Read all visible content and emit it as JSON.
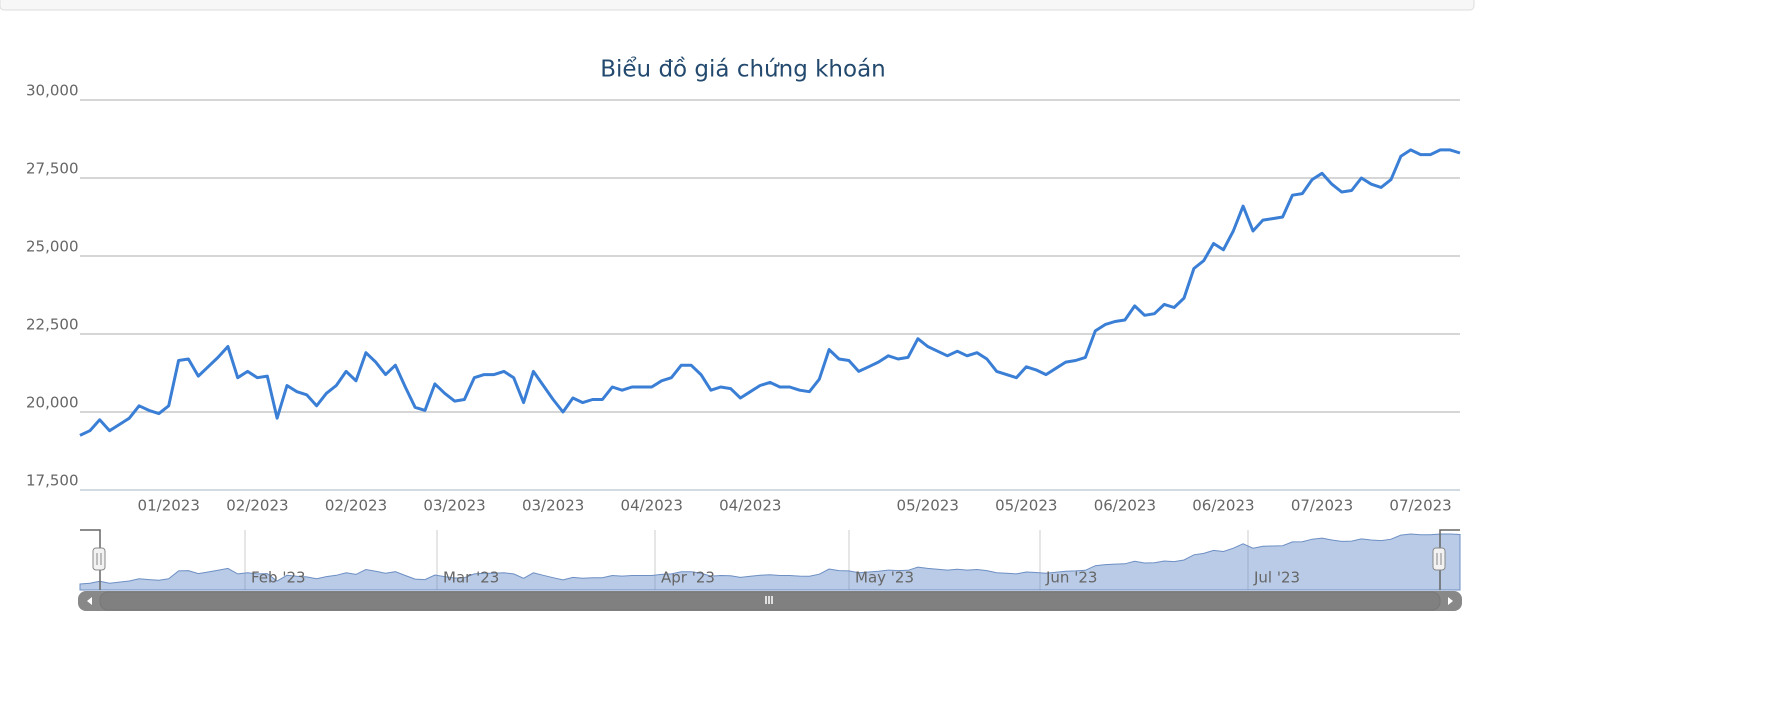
{
  "chart_data": {
    "type": "line",
    "title": "Biểu đồ giá chứng khoán",
    "color": "#3a7fd5",
    "grid": true,
    "ylim": [
      17500,
      30000
    ],
    "yticks": [
      {
        "value": 17500,
        "label": "17,500"
      },
      {
        "value": 20000,
        "label": "20,000"
      },
      {
        "value": 22500,
        "label": "22,500"
      },
      {
        "value": 25000,
        "label": "25,000"
      },
      {
        "value": 27500,
        "label": "27,500"
      },
      {
        "value": 30000,
        "label": "30,000"
      }
    ],
    "categories": [
      null,
      null,
      null,
      null,
      null,
      null,
      null,
      null,
      null,
      "01/2023",
      null,
      null,
      null,
      null,
      null,
      null,
      null,
      null,
      "02/2023",
      null,
      null,
      null,
      null,
      null,
      null,
      null,
      null,
      null,
      "02/2023",
      null,
      null,
      null,
      null,
      null,
      null,
      null,
      null,
      null,
      "03/2023",
      null,
      null,
      null,
      null,
      null,
      null,
      null,
      null,
      null,
      "03/2023",
      null,
      null,
      null,
      null,
      null,
      null,
      null,
      null,
      null,
      "04/2023",
      null,
      null,
      null,
      null,
      null,
      null,
      null,
      null,
      null,
      "04/2023",
      null,
      null,
      null,
      null,
      null,
      null,
      null,
      null,
      null,
      null,
      null,
      null,
      null,
      null,
      null,
      null,
      null,
      "05/2023",
      null,
      null,
      null,
      null,
      null,
      null,
      null,
      null,
      null,
      "05/2023",
      null,
      null,
      null,
      null,
      null,
      null,
      null,
      null,
      null,
      "06/2023",
      null,
      null,
      null,
      null,
      null,
      null,
      null,
      null,
      null,
      "06/2023",
      null,
      null,
      null,
      null,
      null,
      null,
      null,
      null,
      null,
      "07/2023",
      null,
      null,
      null,
      null,
      null,
      null,
      null,
      null,
      null,
      "07/2023",
      null,
      null,
      null,
      null
    ],
    "values": [
      19250,
      19400,
      19750,
      19400,
      19600,
      19800,
      20200,
      20050,
      19950,
      20200,
      21650,
      21700,
      21150,
      21450,
      21750,
      22100,
      21100,
      21300,
      21100,
      21150,
      19800,
      20850,
      20650,
      20550,
      20200,
      20600,
      20850,
      21300,
      21000,
      21900,
      21600,
      21200,
      21500,
      20800,
      20150,
      20050,
      20900,
      20600,
      20350,
      20400,
      21100,
      21200,
      21200,
      21300,
      21100,
      20300,
      21300,
      20850,
      20400,
      20000,
      20450,
      20300,
      20400,
      20400,
      20800,
      20700,
      20800,
      20800,
      20800,
      21000,
      21100,
      21500,
      21500,
      21200,
      20700,
      20800,
      20750,
      20450,
      20650,
      20850,
      20950,
      20800,
      20800,
      20700,
      20650,
      21050,
      22000,
      21700,
      21650,
      21300,
      21450,
      21600,
      21800,
      21700,
      21750,
      22350,
      22100,
      21950,
      21800,
      21950,
      21800,
      21900,
      21700,
      21300,
      21200,
      21100,
      21450,
      21350,
      21200,
      21400,
      21600,
      21650,
      21750,
      22600,
      22800,
      22900,
      22950,
      23400,
      23100,
      23150,
      23450,
      23350,
      23650,
      24600,
      24850,
      25400,
      25200,
      25800,
      26600,
      25800,
      26150,
      26200,
      26250,
      26950,
      27000,
      27450,
      27650,
      27300,
      27050,
      27100,
      27500,
      27300,
      27200,
      27450,
      28200,
      28400,
      28250,
      28250,
      28400,
      28400,
      28300
    ],
    "navigator_labels": [
      "Feb '23",
      "Mar '23",
      "Apr '23",
      "May '23",
      "Jun '23",
      "Jul '23"
    ]
  }
}
